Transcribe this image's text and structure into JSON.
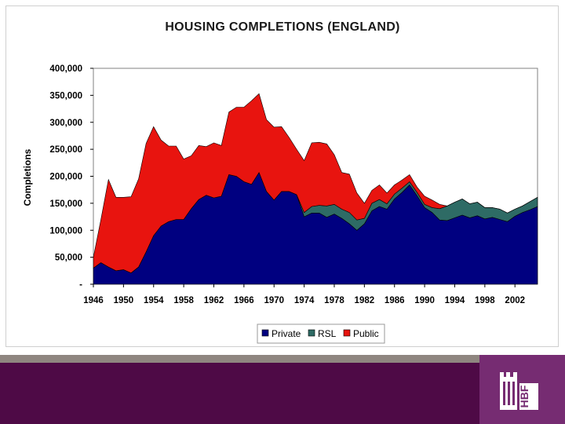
{
  "chart_data": {
    "type": "area",
    "stacked": true,
    "title": "HOUSING COMPLETIONS (ENGLAND)",
    "xlabel": "",
    "ylabel": "Completions",
    "ylim": [
      0,
      400000
    ],
    "xlim": [
      1946,
      2005
    ],
    "yticks": [
      0,
      50000,
      100000,
      150000,
      200000,
      250000,
      300000,
      350000,
      400000
    ],
    "ytick_labels": [
      "-",
      "50,000",
      "100,000",
      "150,000",
      "200,000",
      "250,000",
      "300,000",
      "350,000",
      "400,000"
    ],
    "xticks": [
      1946,
      1950,
      1954,
      1958,
      1962,
      1966,
      1970,
      1974,
      1978,
      1982,
      1986,
      1990,
      1994,
      1998,
      2002
    ],
    "xtick_labels": [
      "1946",
      "1950",
      "1954",
      "1958",
      "1962",
      "1966",
      "1970",
      "1974",
      "1978",
      "1982",
      "1986",
      "1990",
      "1994",
      "1998",
      "2002"
    ],
    "x": [
      1946,
      1947,
      1948,
      1949,
      1950,
      1951,
      1952,
      1953,
      1954,
      1955,
      1956,
      1957,
      1958,
      1959,
      1960,
      1961,
      1962,
      1963,
      1964,
      1965,
      1966,
      1967,
      1968,
      1969,
      1970,
      1971,
      1972,
      1973,
      1974,
      1975,
      1976,
      1977,
      1978,
      1979,
      1980,
      1981,
      1982,
      1983,
      1984,
      1985,
      1986,
      1987,
      1988,
      1989,
      1990,
      1991,
      1992,
      1993,
      1994,
      1995,
      1996,
      1997,
      1998,
      1999,
      2000,
      2001,
      2002,
      2003,
      2004,
      2005
    ],
    "series": [
      {
        "name": "Private",
        "color": "#000080",
        "values": [
          30000,
          40000,
          32000,
          25000,
          27000,
          21000,
          32000,
          60000,
          90000,
          108000,
          116000,
          120000,
          120000,
          140000,
          157000,
          165000,
          160000,
          163000,
          203000,
          200000,
          190000,
          185000,
          207000,
          172000,
          156000,
          172000,
          172000,
          166000,
          125000,
          132000,
          132000,
          124000,
          130000,
          122000,
          112000,
          100000,
          112000,
          136000,
          144000,
          139000,
          158000,
          170000,
          184000,
          164000,
          142000,
          133000,
          119000,
          118000,
          123000,
          128000,
          123000,
          127000,
          121000,
          124000,
          120000,
          116000,
          126000,
          133000,
          138000,
          144000
        ]
      },
      {
        "name": "RSL",
        "color": "#2e6b65",
        "values": [
          0,
          0,
          0,
          0,
          0,
          0,
          0,
          0,
          0,
          0,
          0,
          0,
          0,
          0,
          0,
          0,
          0,
          0,
          0,
          0,
          0,
          0,
          0,
          0,
          0,
          0,
          0,
          0,
          8000,
          12000,
          14000,
          21000,
          18000,
          17000,
          21000,
          19000,
          10000,
          14000,
          13000,
          10000,
          9000,
          8000,
          6000,
          6000,
          6000,
          9000,
          21000,
          27000,
          29000,
          30000,
          26000,
          25000,
          21000,
          18000,
          19000,
          16000,
          13000,
          12000,
          15000,
          17000
        ]
      },
      {
        "name": "Public",
        "color": "#e8140f",
        "values": [
          20000,
          80000,
          162000,
          136000,
          134000,
          141000,
          163000,
          201000,
          202000,
          159000,
          140000,
          136000,
          112000,
          98000,
          100000,
          90000,
          102000,
          94000,
          116000,
          128000,
          138000,
          155000,
          146000,
          133000,
          135000,
          120000,
          100000,
          84000,
          96000,
          118000,
          117000,
          115000,
          92000,
          68000,
          71000,
          50000,
          28000,
          24000,
          27000,
          20000,
          17000,
          15000,
          13000,
          10000,
          15000,
          14000,
          8000,
          0,
          0,
          0,
          0,
          0,
          0,
          0,
          0,
          0,
          0,
          0,
          0,
          0
        ]
      }
    ],
    "legend_position": "bottom-center",
    "legend": [
      "Private",
      "RSL",
      "Public"
    ]
  },
  "logo": {
    "text": "HBF",
    "color": "#ffffff",
    "background": "#762c72"
  },
  "colors": {
    "footer_band": "#4e0a46",
    "footer_line": "#8f8680",
    "accent": "#762c72"
  }
}
